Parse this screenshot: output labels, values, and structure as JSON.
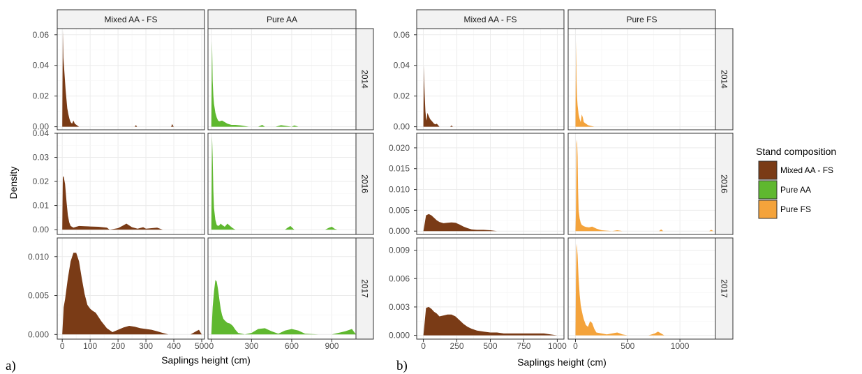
{
  "colors": {
    "Mixed AA - FS": "#7a3b16",
    "Pure AA": "#5fb82f",
    "Pure FS": "#f4a33b"
  },
  "figure_labels": [
    "a)",
    "b)"
  ],
  "ylabel": "Density",
  "legend": {
    "title": "Stand composition",
    "items": [
      "Mixed AA - FS",
      "Pure AA",
      "Pure FS"
    ]
  },
  "chart_data": [
    {
      "id": "a",
      "type": "area",
      "xlabel": "Saplings height (cm)",
      "columns": [
        "Mixed AA - FS",
        "Pure AA"
      ],
      "rows": [
        "2014",
        "2016",
        "2017"
      ],
      "xlims": [
        [
          -18,
          510
        ],
        [
          -25,
          1080
        ]
      ],
      "xticks": [
        [
          0,
          100,
          200,
          300,
          400,
          500
        ],
        [
          0,
          300,
          600,
          900
        ]
      ],
      "ylims": [
        [
          -0.002,
          0.064
        ],
        [
          -0.002,
          0.04
        ],
        [
          -0.0006,
          0.0124
        ]
      ],
      "yticks": [
        [
          "0.00",
          "0.02",
          "0.04",
          "0.06"
        ],
        [
          "0.00",
          "0.01",
          "0.02",
          "0.03",
          "0.04"
        ],
        [
          "0.000",
          "0.005",
          "0.010"
        ]
      ],
      "panels": [
        {
          "column": "Mixed AA - FS",
          "row": "2014",
          "x": [
            0,
            2,
            4,
            6,
            9,
            12,
            15,
            18,
            22,
            26,
            30,
            35,
            40,
            45,
            52,
            60,
            260,
            262,
            264,
            266,
            268,
            270,
            390,
            392,
            394,
            396,
            398,
            400
          ],
          "y": [
            0,
            0.063,
            0.045,
            0.04,
            0.032,
            0.024,
            0.018,
            0.012,
            0.008,
            0.005,
            0.003,
            0.002,
            0.004,
            0.002,
            0.001,
            0,
            0,
            0.0006,
            0.001,
            0.0006,
            0,
            0,
            0,
            0.0006,
            0.0018,
            0.0012,
            0.0004,
            0
          ]
        },
        {
          "column": "Pure AA",
          "row": "2014",
          "x": [
            0,
            5,
            10,
            15,
            20,
            25,
            30,
            40,
            50,
            60,
            80,
            100,
            120,
            150,
            180,
            220,
            280,
            350,
            380,
            400,
            480,
            520,
            600,
            620,
            650
          ],
          "y": [
            0,
            0.056,
            0.03,
            0.02,
            0.015,
            0.012,
            0.009,
            0.006,
            0.004,
            0.0035,
            0.004,
            0.003,
            0.002,
            0.0012,
            0.0012,
            0.0008,
            0,
            0,
            0.0012,
            0,
            0,
            0.001,
            0,
            0.0008,
            0
          ]
        },
        {
          "column": "Mixed AA - FS",
          "row": "2016",
          "x": [
            0,
            2,
            5,
            10,
            15,
            20,
            25,
            30,
            40,
            50,
            60,
            80,
            100,
            130,
            160,
            170,
            200,
            215,
            230,
            250,
            270,
            290,
            300,
            320,
            340,
            360
          ],
          "y": [
            0,
            0.022,
            0.022,
            0.019,
            0.012,
            0.006,
            0.003,
            0.0015,
            0.0008,
            0.0012,
            0.0015,
            0.0014,
            0.0013,
            0.0012,
            0.0008,
            0,
            0.0006,
            0.0015,
            0.0025,
            0.001,
            0.0004,
            0.001,
            0.0004,
            0.0006,
            0.0008,
            0
          ]
        },
        {
          "column": "Pure AA",
          "row": "2016",
          "x": [
            0,
            5,
            10,
            15,
            20,
            30,
            40,
            50,
            60,
            70,
            80,
            100,
            120,
            140,
            160,
            180,
            550,
            570,
            590,
            620,
            850,
            880,
            900,
            920,
            940
          ],
          "y": [
            0,
            0.039,
            0.03,
            0.016,
            0.009,
            0.004,
            0.002,
            0.0015,
            0.0018,
            0.0025,
            0.002,
            0.0012,
            0.0025,
            0.0015,
            0.0006,
            0,
            0,
            0.0008,
            0.0015,
            0,
            0,
            0.0008,
            0.0012,
            0.0004,
            0
          ]
        },
        {
          "column": "Mixed AA - FS",
          "row": "2017",
          "x": [
            0,
            5,
            10,
            20,
            30,
            40,
            50,
            60,
            70,
            80,
            90,
            100,
            110,
            120,
            140,
            160,
            180,
            200,
            220,
            240,
            260,
            280,
            300,
            320,
            340,
            360,
            380,
            400,
            460,
            480,
            490,
            500
          ],
          "y": [
            0,
            0.0035,
            0.0045,
            0.0072,
            0.0094,
            0.0105,
            0.0105,
            0.0094,
            0.0072,
            0.0052,
            0.0038,
            0.0033,
            0.003,
            0.0028,
            0.0017,
            0.0008,
            0.0003,
            0.0006,
            0.0009,
            0.0011,
            0.001,
            0.0008,
            0.0007,
            0.0006,
            0.0004,
            0.0002,
            0,
            0,
            0,
            0.0004,
            0.0006,
            0
          ]
        },
        {
          "column": "Pure AA",
          "row": "2017",
          "x": [
            0,
            10,
            20,
            30,
            40,
            50,
            60,
            70,
            80,
            90,
            100,
            120,
            140,
            160,
            180,
            200,
            250,
            300,
            350,
            400,
            450,
            500,
            550,
            600,
            650,
            700,
            800,
            900,
            1000,
            1050,
            1080
          ],
          "y": [
            0,
            0.0035,
            0.0055,
            0.007,
            0.0068,
            0.0058,
            0.0045,
            0.0033,
            0.0025,
            0.002,
            0.0018,
            0.0015,
            0.0014,
            0.0011,
            0.0006,
            0.0002,
            0,
            0.0002,
            0.0007,
            0.0008,
            0.0004,
            0.0001,
            0.0005,
            0.0007,
            0.0005,
            0.0001,
            0,
            0,
            0.0004,
            0.0007,
            0
          ]
        }
      ]
    },
    {
      "id": "b",
      "type": "area",
      "xlabel": "Saplings height (cm)",
      "columns": [
        "Mixed AA - FS",
        "Pure FS"
      ],
      "rows": [
        "2014",
        "2016",
        "2017"
      ],
      "xlims": [
        [
          -50,
          1050
        ],
        [
          -70,
          1340
        ]
      ],
      "xticks": [
        [
          0,
          250,
          500,
          750,
          1000
        ],
        [
          0,
          500,
          1000
        ]
      ],
      "ylims": [
        [
          -0.002,
          0.064
        ],
        [
          -0.0008,
          0.0235
        ],
        [
          -0.0004,
          0.0103
        ]
      ],
      "yticks": [
        [
          "0.00",
          "0.02",
          "0.04",
          "0.06"
        ],
        [
          "0.000",
          "0.005",
          "0.010",
          "0.015",
          "0.020"
        ],
        [
          "0.000",
          "0.003",
          "0.006",
          "0.009"
        ]
      ],
      "panels": [
        {
          "column": "Mixed AA - FS",
          "row": "2014",
          "x": [
            0,
            3,
            6,
            10,
            15,
            20,
            25,
            30,
            40,
            50,
            60,
            70,
            80,
            90,
            100,
            110,
            120,
            200,
            210,
            220
          ],
          "y": [
            0,
            0.04,
            0.03,
            0.02,
            0.01,
            0.006,
            0.004,
            0.009,
            0.007,
            0.005,
            0.004,
            0.003,
            0.002,
            0.0015,
            0.002,
            0.001,
            0,
            0,
            0.0008,
            0
          ]
        },
        {
          "column": "Pure FS",
          "row": "2014",
          "x": [
            0,
            5,
            10,
            15,
            20,
            30,
            40,
            50,
            60,
            70,
            80,
            100,
            120,
            150,
            180
          ],
          "y": [
            0,
            0.056,
            0.03,
            0.02,
            0.014,
            0.008,
            0.005,
            0.003,
            0.008,
            0.006,
            0.003,
            0.002,
            0.001,
            0.0005,
            0
          ]
        },
        {
          "column": "Mixed AA - FS",
          "row": "2016",
          "x": [
            0,
            20,
            40,
            60,
            80,
            100,
            120,
            150,
            180,
            210,
            240,
            270,
            300,
            330,
            360,
            400,
            450,
            500,
            550
          ],
          "y": [
            0,
            0.0038,
            0.0041,
            0.0038,
            0.0032,
            0.0026,
            0.0022,
            0.0019,
            0.002,
            0.0021,
            0.002,
            0.0016,
            0.0011,
            0.0007,
            0.0004,
            0.0003,
            0.0003,
            0.0002,
            0
          ]
        },
        {
          "column": "Pure FS",
          "row": "2016",
          "x": [
            0,
            5,
            10,
            15,
            20,
            25,
            30,
            40,
            50,
            60,
            80,
            100,
            130,
            160,
            200,
            250,
            300,
            350,
            400,
            450,
            500,
            800,
            820,
            840,
            1280,
            1300,
            1320
          ],
          "y": [
            0,
            0.005,
            0.021,
            0.022,
            0.018,
            0.01,
            0.005,
            0.003,
            0.002,
            0.0015,
            0.0012,
            0.001,
            0.0009,
            0.0011,
            0.0006,
            0.0002,
            0.0001,
            0,
            0.0002,
            0,
            0,
            0,
            0.0004,
            0,
            0,
            0.0003,
            0
          ]
        },
        {
          "column": "Mixed AA - FS",
          "row": "2017",
          "x": [
            0,
            20,
            40,
            60,
            80,
            100,
            120,
            150,
            180,
            210,
            240,
            270,
            300,
            330,
            360,
            400,
            450,
            500,
            550,
            600,
            650,
            700,
            800,
            900,
            1000
          ],
          "y": [
            0,
            0.0029,
            0.003,
            0.0028,
            0.0025,
            0.0023,
            0.002,
            0.0021,
            0.0022,
            0.0022,
            0.002,
            0.0016,
            0.0012,
            0.0009,
            0.0007,
            0.0005,
            0.0004,
            0.0003,
            0.0003,
            0.0002,
            0.0002,
            0.0002,
            0.0002,
            0.0002,
            0
          ]
        },
        {
          "column": "Pure FS",
          "row": "2017",
          "x": [
            0,
            5,
            10,
            15,
            20,
            25,
            30,
            40,
            50,
            60,
            70,
            80,
            100,
            120,
            140,
            160,
            180,
            200,
            250,
            300,
            350,
            400,
            450,
            500,
            700,
            760,
            790,
            820,
            850
          ],
          "y": [
            0,
            0.006,
            0.0097,
            0.0093,
            0.0085,
            0.0073,
            0.006,
            0.0043,
            0.0032,
            0.0026,
            0.0021,
            0.0017,
            0.0011,
            0.0009,
            0.0015,
            0.0013,
            0.0007,
            0.0003,
            0.0002,
            0.0001,
            0.0002,
            0.0003,
            0.0001,
            0,
            0,
            0.0002,
            0.0004,
            0.0002,
            0
          ]
        }
      ]
    }
  ]
}
